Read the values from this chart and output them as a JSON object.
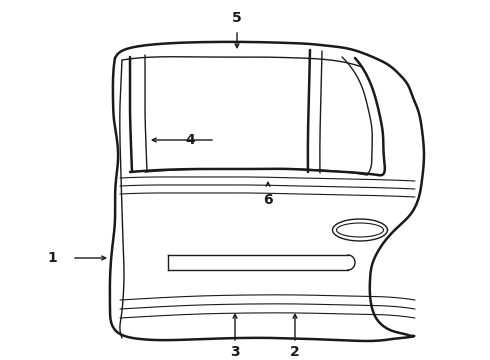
{
  "background_color": "#ffffff",
  "line_color": "#1a1a1a",
  "lw_outer": 1.8,
  "lw_inner": 1.0,
  "lw_thin": 0.8,
  "label_fontsize": 10,
  "label_fontweight": "bold",
  "fig_w": 4.9,
  "fig_h": 3.6,
  "dpi": 100
}
